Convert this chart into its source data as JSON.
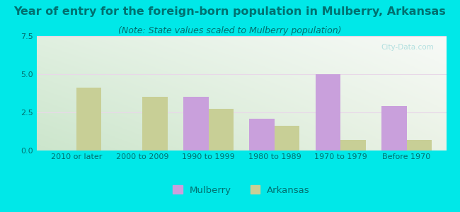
{
  "title": "Year of entry for the foreign-born population in Mulberry, Arkansas",
  "subtitle": "(Note: State values scaled to Mulberry population)",
  "categories": [
    "2010 or later",
    "2000 to 2009",
    "1990 to 1999",
    "1980 to 1989",
    "1970 to 1979",
    "Before 1970"
  ],
  "mulberry": [
    0,
    0,
    3.5,
    2.1,
    5.0,
    2.9
  ],
  "arkansas": [
    4.1,
    3.5,
    2.75,
    1.6,
    0.7,
    0.7
  ],
  "mulberry_color": "#c9a0dc",
  "arkansas_color": "#c8cf96",
  "background_color": "#00e8e8",
  "ylim": [
    0,
    7.5
  ],
  "yticks": [
    0,
    2.5,
    5,
    7.5
  ],
  "bar_width": 0.38,
  "legend_mulberry": "Mulberry",
  "legend_arkansas": "Arkansas",
  "title_fontsize": 11.5,
  "subtitle_fontsize": 9,
  "tick_fontsize": 8,
  "legend_fontsize": 9.5,
  "title_color": "#007070",
  "subtitle_color": "#007070",
  "tick_color": "#007070",
  "grid_color": "#e8d8e8",
  "watermark_color": "#aadddd"
}
